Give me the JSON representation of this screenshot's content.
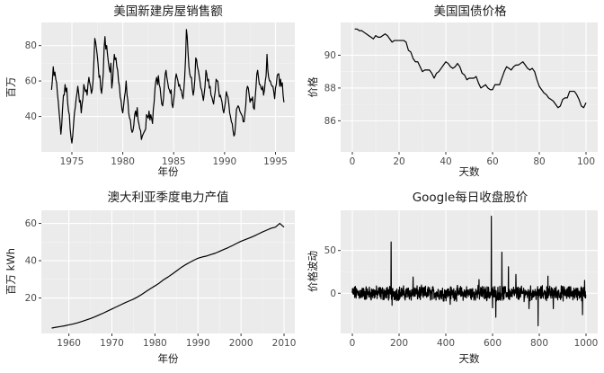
{
  "chart_data": [
    {
      "type": "line",
      "title": "美国新建房屋销售额",
      "xlabel": "年份",
      "ylabel": "百万",
      "xlim": [
        1972.0,
        1996.9
      ],
      "ylim": [
        20,
        93
      ],
      "xticks": [
        1975,
        1980,
        1985,
        1990,
        1995
      ],
      "yticks": [
        40,
        60,
        80
      ],
      "grid": true,
      "series": [
        {
          "x": [
            1973.0,
            1973.08,
            1973.17,
            1973.25,
            1973.33,
            1973.42,
            1973.5,
            1973.58,
            1973.67,
            1973.75,
            1973.83,
            1973.92,
            1974.0,
            1974.08,
            1974.17,
            1974.25,
            1974.33,
            1974.42,
            1974.5,
            1974.58,
            1974.67,
            1974.75,
            1974.83,
            1974.92,
            1975.0,
            1975.08,
            1975.17,
            1975.25,
            1975.33,
            1975.42,
            1975.5,
            1975.58,
            1975.67,
            1975.75,
            1975.83,
            1975.92,
            1976.0,
            1976.08,
            1976.17,
            1976.25,
            1976.33,
            1976.42,
            1976.5,
            1976.58,
            1976.67,
            1976.75,
            1976.83,
            1976.92,
            1977.0,
            1977.08,
            1977.17,
            1977.25,
            1977.33,
            1977.42,
            1977.5,
            1977.58,
            1977.67,
            1977.75,
            1977.83,
            1977.92,
            1978.0,
            1978.08,
            1978.17,
            1978.25,
            1978.33,
            1978.42,
            1978.5,
            1978.58,
            1978.67,
            1978.75,
            1978.83,
            1978.92,
            1979.0,
            1979.08,
            1979.17,
            1979.25,
            1979.33,
            1979.42,
            1979.5,
            1979.58,
            1979.67,
            1979.75,
            1979.83,
            1979.92,
            1980.0,
            1980.08,
            1980.17,
            1980.25,
            1980.33,
            1980.42,
            1980.5,
            1980.58,
            1980.67,
            1980.75,
            1980.83,
            1980.92,
            1981.0,
            1981.08,
            1981.17,
            1981.25,
            1981.33,
            1981.42,
            1981.5,
            1981.58,
            1981.67,
            1981.75,
            1981.83,
            1981.92,
            1982.0,
            1982.08,
            1982.17,
            1982.25,
            1982.33,
            1982.42,
            1982.5,
            1982.58,
            1982.67,
            1982.75,
            1982.83,
            1982.92,
            1983.0,
            1983.08,
            1983.17,
            1983.25,
            1983.33,
            1983.42,
            1983.5,
            1983.58,
            1983.67,
            1983.75,
            1983.83,
            1983.92,
            1984.0,
            1984.08,
            1984.17,
            1984.25,
            1984.33,
            1984.42,
            1984.5,
            1984.58,
            1984.67,
            1984.75,
            1984.83,
            1984.92,
            1985.0,
            1985.08,
            1985.17,
            1985.25,
            1985.33,
            1985.42,
            1985.5,
            1985.58,
            1985.67,
            1985.75,
            1985.83,
            1985.92,
            1986.0,
            1986.08,
            1986.17,
            1986.25,
            1986.33,
            1986.42,
            1986.5,
            1986.58,
            1986.67,
            1986.75,
            1986.83,
            1986.92,
            1987.0,
            1987.08,
            1987.17,
            1987.25,
            1987.33,
            1987.42,
            1987.5,
            1987.58,
            1987.67,
            1987.75,
            1987.83,
            1987.92,
            1988.0,
            1988.08,
            1988.17,
            1988.25,
            1988.33,
            1988.42,
            1988.5,
            1988.58,
            1988.67,
            1988.75,
            1988.83,
            1988.92,
            1989.0,
            1989.08,
            1989.17,
            1989.25,
            1989.33,
            1989.42,
            1989.5,
            1989.58,
            1989.67,
            1989.75,
            1989.83,
            1989.92,
            1990.0,
            1990.08,
            1990.17,
            1990.25,
            1990.33,
            1990.42,
            1990.5,
            1990.58,
            1990.67,
            1990.75,
            1990.83,
            1990.92,
            1991.0,
            1991.08,
            1991.17,
            1991.25,
            1991.33,
            1991.42,
            1991.5,
            1991.58,
            1991.67,
            1991.75,
            1991.83,
            1991.92,
            1992.0,
            1992.08,
            1992.17,
            1992.25,
            1992.33,
            1992.42,
            1992.5,
            1992.58,
            1992.67,
            1992.75,
            1992.83,
            1992.92,
            1993.0,
            1993.08,
            1993.17,
            1993.25,
            1993.33,
            1993.42,
            1993.5,
            1993.58,
            1993.67,
            1993.75,
            1993.83,
            1993.92,
            1994.0,
            1994.08,
            1994.17,
            1994.25,
            1994.33,
            1994.42,
            1994.5,
            1994.58,
            1994.67,
            1994.75,
            1994.83,
            1994.92,
            1995.0,
            1995.08,
            1995.17,
            1995.25,
            1995.33,
            1995.42,
            1995.5,
            1995.58,
            1995.67,
            1995.75,
            1995.83
          ],
          "y": [
            55,
            60,
            68,
            63,
            65,
            61,
            59,
            53,
            48,
            42,
            37,
            30,
            35,
            44,
            52,
            52,
            58,
            54,
            56,
            48,
            43,
            41,
            33,
            28,
            25,
            29,
            36,
            42,
            45,
            50,
            53,
            57,
            53,
            48,
            49,
            42,
            47,
            50,
            58,
            56,
            54,
            55,
            52,
            58,
            62,
            59,
            57,
            53,
            55,
            60,
            72,
            84,
            82,
            78,
            74,
            69,
            62,
            63,
            56,
            53,
            58,
            64,
            79,
            85,
            78,
            80,
            75,
            71,
            67,
            65,
            70,
            56,
            60,
            68,
            75,
            72,
            73,
            68,
            66,
            60,
            57,
            51,
            49,
            44,
            42,
            46,
            51,
            54,
            60,
            52,
            49,
            42,
            39,
            38,
            33,
            31,
            32,
            35,
            41,
            43,
            40,
            45,
            38,
            36,
            33,
            32,
            27,
            29,
            30,
            31,
            32,
            33,
            41,
            40,
            39,
            43,
            38,
            41,
            39,
            36,
            44,
            48,
            56,
            60,
            62,
            58,
            63,
            58,
            56,
            51,
            47,
            46,
            50,
            57,
            64,
            66,
            62,
            59,
            56,
            55,
            53,
            55,
            47,
            45,
            49,
            53,
            61,
            64,
            62,
            60,
            57,
            58,
            55,
            55,
            52,
            50,
            55,
            62,
            73,
            89,
            85,
            75,
            68,
            64,
            62,
            62,
            56,
            52,
            55,
            61,
            73,
            72,
            68,
            66,
            63,
            60,
            56,
            55,
            52,
            49,
            53,
            57,
            66,
            64,
            60,
            61,
            56,
            57,
            52,
            51,
            49,
            47,
            51,
            54,
            61,
            60,
            60,
            55,
            51,
            52,
            50,
            48,
            44,
            42,
            45,
            48,
            54,
            52,
            51,
            47,
            42,
            40,
            37,
            36,
            32,
            29,
            30,
            36,
            44,
            45,
            46,
            45,
            43,
            42,
            41,
            40,
            37,
            37,
            42,
            46,
            55,
            57,
            56,
            52,
            48,
            50,
            49,
            51,
            45,
            44,
            50,
            56,
            64,
            66,
            62,
            58,
            58,
            56,
            55,
            57,
            52,
            55,
            60,
            63,
            75,
            66,
            62,
            60,
            60,
            58,
            57,
            57,
            54,
            50,
            56,
            58,
            63,
            64,
            64,
            57,
            61,
            57,
            59,
            52,
            48
          ]
        }
      ]
    },
    {
      "type": "line",
      "title": "美国国债价格",
      "xlabel": "天数",
      "ylabel": "价格",
      "xlim": [
        -5,
        105
      ],
      "ylim": [
        84.1,
        92.0
      ],
      "xticks": [
        0,
        20,
        40,
        60,
        80,
        100
      ],
      "yticks": [
        86,
        88,
        90
      ],
      "grid": true,
      "series": [
        {
          "x": [
            1,
            2,
            3,
            4,
            5,
            6,
            7,
            8,
            9,
            10,
            11,
            12,
            13,
            14,
            15,
            16,
            17,
            18,
            19,
            20,
            21,
            22,
            23,
            24,
            25,
            26,
            27,
            28,
            29,
            30,
            31,
            32,
            33,
            34,
            35,
            36,
            37,
            38,
            39,
            40,
            41,
            42,
            43,
            44,
            45,
            46,
            47,
            48,
            49,
            50,
            51,
            52,
            53,
            54,
            55,
            56,
            57,
            58,
            59,
            60,
            61,
            62,
            63,
            64,
            65,
            66,
            67,
            68,
            69,
            70,
            71,
            72,
            73,
            74,
            75,
            76,
            77,
            78,
            79,
            80,
            81,
            82,
            83,
            84,
            85,
            86,
            87,
            88,
            89,
            90,
            91,
            92,
            93,
            94,
            95,
            96,
            97,
            98,
            99,
            100
          ],
          "y": [
            91.6,
            91.6,
            91.5,
            91.5,
            91.4,
            91.3,
            91.2,
            91.1,
            91.0,
            91.2,
            91.1,
            91.1,
            91.2,
            91.3,
            91.2,
            91.0,
            90.8,
            90.9,
            90.9,
            90.9,
            90.9,
            90.9,
            90.8,
            90.3,
            90.2,
            89.8,
            89.6,
            89.6,
            89.3,
            89.0,
            89.1,
            89.1,
            89.1,
            88.9,
            88.6,
            88.9,
            89.0,
            89.2,
            89.4,
            89.6,
            89.5,
            89.3,
            89.2,
            89.3,
            89.5,
            89.3,
            88.9,
            88.8,
            88.5,
            88.6,
            88.6,
            88.6,
            88.7,
            88.3,
            88.0,
            88.1,
            88.2,
            88.0,
            87.9,
            87.9,
            88.2,
            88.2,
            88.2,
            88.6,
            89.0,
            89.3,
            89.2,
            89.1,
            89.3,
            89.4,
            89.4,
            89.5,
            89.6,
            89.4,
            89.2,
            89.1,
            89.2,
            89.0,
            88.5,
            88.1,
            87.9,
            87.7,
            87.6,
            87.4,
            87.3,
            87.2,
            87.0,
            86.8,
            86.9,
            87.3,
            87.4,
            87.4,
            87.8,
            87.8,
            87.8,
            87.6,
            87.3,
            86.9,
            86.8,
            87.1
          ],
          "note": ""
        }
      ]
    },
    {
      "type": "line",
      "title": "澳大利亚季度电力产值",
      "xlabel": "年份",
      "ylabel": "百万 kWh",
      "xlim": [
        1953.6,
        2012.5
      ],
      "ylim": [
        1.0,
        67.0
      ],
      "xticks": [
        1960,
        1970,
        1980,
        1990,
        2000,
        2010
      ],
      "yticks": [
        20,
        40,
        60
      ],
      "grid": true,
      "series": [
        {
          "x": [
            1956.0,
            1957.0,
            1958.0,
            1959.0,
            1960.0,
            1961.0,
            1962.0,
            1963.0,
            1964.0,
            1965.0,
            1966.0,
            1967.0,
            1968.0,
            1969.0,
            1970.0,
            1971.0,
            1972.0,
            1973.0,
            1974.0,
            1975.0,
            1976.0,
            1977.0,
            1978.0,
            1979.0,
            1980.0,
            1981.0,
            1982.0,
            1983.0,
            1984.0,
            1985.0,
            1986.0,
            1987.0,
            1988.0,
            1989.0,
            1990.0,
            1991.0,
            1992.0,
            1993.0,
            1994.0,
            1995.0,
            1996.0,
            1997.0,
            1998.0,
            1999.0,
            2000.0,
            2001.0,
            2002.0,
            2003.0,
            2004.0,
            2005.0,
            2006.0,
            2007.0,
            2008.0,
            2009.0,
            2010.0
          ],
          "y": [
            3.9,
            4.3,
            4.7,
            5.1,
            5.6,
            6.1,
            6.7,
            7.4,
            8.2,
            9.0,
            9.9,
            10.9,
            11.9,
            13.0,
            14.1,
            15.2,
            16.3,
            17.4,
            18.4,
            19.4,
            20.6,
            22.0,
            23.6,
            25.1,
            26.5,
            28.0,
            29.8,
            31.2,
            32.8,
            34.5,
            36.2,
            37.7,
            39.0,
            40.2,
            41.3,
            42.0,
            42.5,
            43.3,
            44.0,
            45.0,
            46.0,
            47.0,
            48.1,
            49.3,
            50.4,
            51.3,
            52.2,
            53.2,
            54.3,
            55.4,
            56.4,
            57.4,
            58.0,
            60.0,
            58.0
          ],
          "note": ""
        }
      ]
    },
    {
      "type": "line",
      "title": "Google每日收盘股价",
      "xlabel": "天数",
      "ylabel": "价格波动",
      "xlim": [
        -50,
        1050
      ],
      "ylim": [
        -47,
        97
      ],
      "xticks": [
        0,
        200,
        400,
        600,
        800,
        1000
      ],
      "yticks": [
        0,
        50
      ],
      "grid": true,
      "series": [
        {
          "x": [],
          "y": []
        }
      ]
    }
  ]
}
